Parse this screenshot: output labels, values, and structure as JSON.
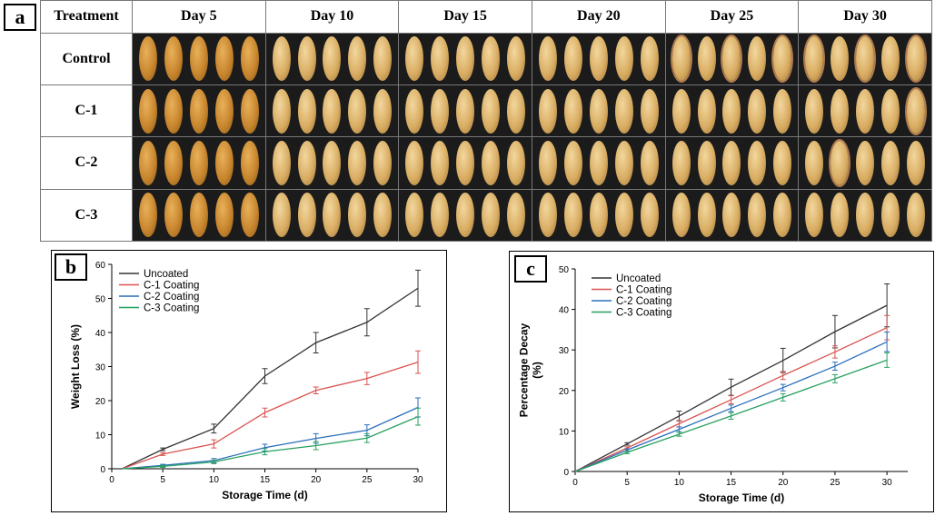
{
  "panel_a": {
    "label": "a",
    "header": "Treatment",
    "days": [
      "Day 5",
      "Day 10",
      "Day 15",
      "Day 20",
      "Day 25",
      "Day 30"
    ],
    "rows": [
      "Control",
      "C-1",
      "C-2",
      "C-3"
    ]
  },
  "chart_data": [
    {
      "panel": "b",
      "type": "line",
      "ylabel": "Weight Loss (%)",
      "xlabel": "Storage Time (d)",
      "xlim": [
        0,
        30
      ],
      "ylim": [
        0,
        60
      ],
      "xticks": [
        0,
        5,
        10,
        15,
        20,
        25,
        30
      ],
      "yticks": [
        0,
        10,
        20,
        30,
        40,
        50,
        60
      ],
      "legend_position": "top-left",
      "x": [
        1,
        5,
        10,
        15,
        20,
        25,
        30
      ],
      "series": [
        {
          "name": "Uncoated",
          "color": "#333333",
          "values": [
            0,
            5.7,
            11.8,
            27.2,
            37.0,
            43.0,
            53.0
          ],
          "errors": [
            0,
            0.4,
            1.3,
            2.2,
            3.0,
            4.0,
            5.3
          ]
        },
        {
          "name": "C-1 Coating",
          "color": "#d9534f",
          "values": [
            0,
            4.3,
            7.3,
            16.5,
            23.0,
            26.5,
            31.3
          ],
          "errors": [
            0,
            0.4,
            1.2,
            1.3,
            1.0,
            1.8,
            3.3
          ]
        },
        {
          "name": "C-2 Coating",
          "color": "#2a6ebb",
          "values": [
            0,
            1.0,
            2.4,
            6.2,
            8.9,
            11.3,
            18.0
          ],
          "errors": [
            0,
            0.3,
            0.6,
            1.0,
            1.4,
            1.6,
            2.8
          ]
        },
        {
          "name": "C-3 Coating",
          "color": "#27a060",
          "values": [
            0,
            0.7,
            2.0,
            5.0,
            6.8,
            9.0,
            15.3
          ],
          "errors": [
            0,
            0.3,
            0.5,
            0.9,
            1.2,
            1.3,
            2.5
          ]
        }
      ]
    },
    {
      "panel": "c",
      "type": "line",
      "ylabel": "Percentage Decay (%)",
      "xlabel": "Storage Time (d)",
      "xlim": [
        0,
        32
      ],
      "ylim": [
        0,
        50
      ],
      "xticks": [
        0,
        5,
        10,
        15,
        20,
        25,
        30
      ],
      "yticks": [
        0,
        10,
        20,
        30,
        40,
        50
      ],
      "legend_position": "top-left",
      "x": [
        0,
        5,
        10,
        15,
        20,
        25,
        30
      ],
      "series": [
        {
          "name": "Uncoated",
          "color": "#333333",
          "values": [
            0,
            6.8,
            13.7,
            20.8,
            27.4,
            34.5,
            41.0
          ],
          "errors": [
            0,
            0.3,
            1.2,
            2.0,
            3.0,
            4.0,
            5.3
          ]
        },
        {
          "name": "C-1 Coating",
          "color": "#d9534f",
          "values": [
            0,
            5.8,
            11.8,
            17.7,
            23.7,
            29.5,
            35.5
          ],
          "errors": [
            0,
            0.3,
            0.8,
            1.0,
            1.0,
            1.5,
            3.0
          ]
        },
        {
          "name": "C-2 Coating",
          "color": "#2a6ebb",
          "values": [
            0,
            5.3,
            10.4,
            15.6,
            20.7,
            26.0,
            32.0
          ],
          "errors": [
            0,
            0.3,
            0.6,
            0.8,
            0.8,
            1.0,
            2.4
          ]
        },
        {
          "name": "C-3 Coating",
          "color": "#27a060",
          "values": [
            0,
            4.7,
            9.2,
            13.7,
            18.3,
            22.9,
            27.5
          ],
          "errors": [
            0,
            0.3,
            0.5,
            0.8,
            0.9,
            1.0,
            1.8
          ]
        }
      ]
    }
  ]
}
